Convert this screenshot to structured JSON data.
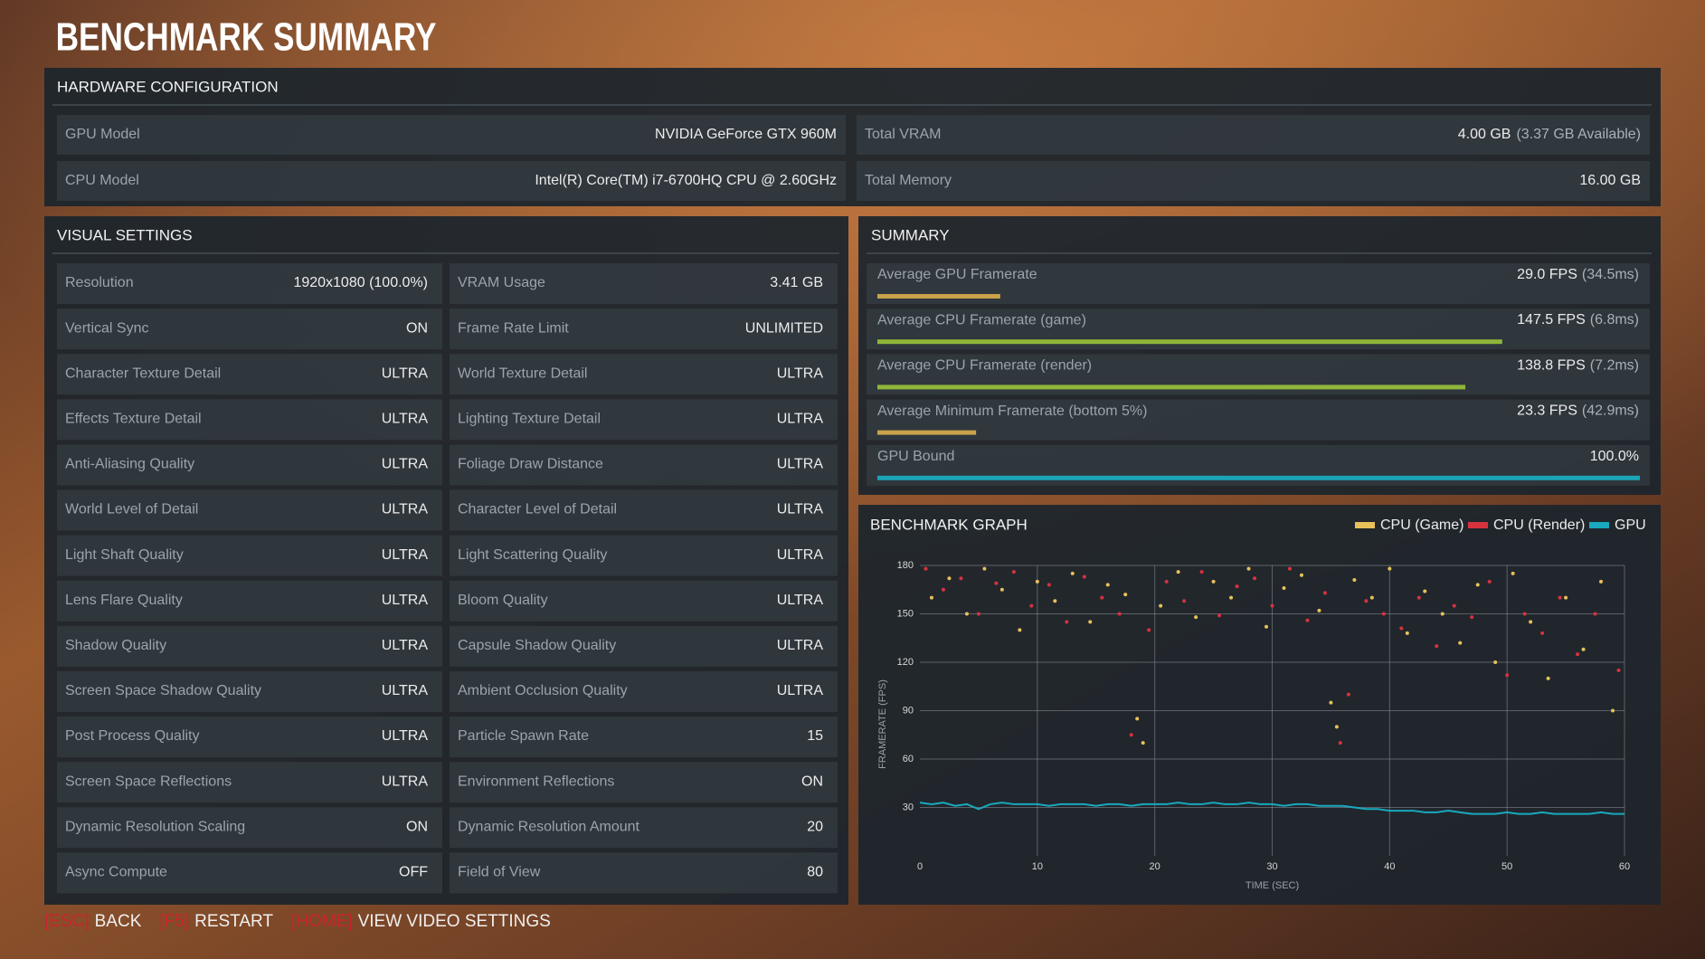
{
  "title": "BENCHMARK SUMMARY",
  "hardware": {
    "title": "HARDWARE CONFIGURATION",
    "rows": [
      {
        "label": "GPU Model",
        "value": "NVIDIA GeForce GTX 960M"
      },
      {
        "label": "Total VRAM",
        "value": "4.00 GB",
        "detail": "(3.37 GB Available)"
      },
      {
        "label": "CPU Model",
        "value": "Intel(R) Core(TM) i7-6700HQ CPU @ 2.60GHz"
      },
      {
        "label": "Total Memory",
        "value": "16.00 GB"
      }
    ]
  },
  "visual_settings": {
    "title": "VISUAL SETTINGS",
    "rows": [
      {
        "label": "Resolution",
        "value": "1920x1080 (100.0%)"
      },
      {
        "label": "VRAM Usage",
        "value": "3.41 GB"
      },
      {
        "label": "Vertical Sync",
        "value": "ON"
      },
      {
        "label": "Frame Rate Limit",
        "value": "UNLIMITED"
      },
      {
        "label": "Character Texture Detail",
        "value": "ULTRA"
      },
      {
        "label": "World Texture Detail",
        "value": "ULTRA"
      },
      {
        "label": "Effects Texture Detail",
        "value": "ULTRA"
      },
      {
        "label": "Lighting Texture Detail",
        "value": "ULTRA"
      },
      {
        "label": "Anti-Aliasing Quality",
        "value": "ULTRA"
      },
      {
        "label": "Foliage Draw Distance",
        "value": "ULTRA"
      },
      {
        "label": "World Level of Detail",
        "value": "ULTRA"
      },
      {
        "label": "Character Level of Detail",
        "value": "ULTRA"
      },
      {
        "label": "Light Shaft Quality",
        "value": "ULTRA"
      },
      {
        "label": "Light Scattering Quality",
        "value": "ULTRA"
      },
      {
        "label": "Lens Flare Quality",
        "value": "ULTRA"
      },
      {
        "label": "Bloom Quality",
        "value": "ULTRA"
      },
      {
        "label": "Shadow Quality",
        "value": "ULTRA"
      },
      {
        "label": "Capsule Shadow Quality",
        "value": "ULTRA"
      },
      {
        "label": "Screen Space Shadow Quality",
        "value": "ULTRA"
      },
      {
        "label": "Ambient Occlusion Quality",
        "value": "ULTRA"
      },
      {
        "label": "Post Process Quality",
        "value": "ULTRA"
      },
      {
        "label": "Particle Spawn Rate",
        "value": 15
      },
      {
        "label": "Screen Space Reflections",
        "value": "ULTRA"
      },
      {
        "label": "Environment Reflections",
        "value": "ON"
      },
      {
        "label": "Dynamic Resolution Scaling",
        "value": "ON"
      },
      {
        "label": "Dynamic Resolution Amount",
        "value": 20
      },
      {
        "label": "Async Compute",
        "value": "OFF"
      },
      {
        "label": "Field of View",
        "value": 80
      }
    ]
  },
  "summary": {
    "title": "SUMMARY",
    "rows": [
      {
        "label": "Average GPU Framerate",
        "value": 29.0,
        "value_label": "29.0 FPS",
        "detail": "(34.5ms)",
        "color": "#c9a24a"
      },
      {
        "label": "Average CPU Framerate (game)",
        "value": 147.5,
        "value_label": "147.5 FPS",
        "detail": "(6.8ms)",
        "color": "#8fb53b"
      },
      {
        "label": "Average CPU Framerate (render)",
        "value": 138.8,
        "value_label": "138.8 FPS",
        "detail": "(7.2ms)",
        "color": "#8fb53b"
      },
      {
        "label": "Average Minimum Framerate (bottom 5%)",
        "value": 23.3,
        "value_label": "23.3 FPS",
        "detail": "(42.9ms)",
        "color": "#c9a24a"
      },
      {
        "label": "GPU Bound",
        "value": 100.0,
        "value_label": "100.0%",
        "color": "#1aa5b8"
      }
    ]
  },
  "chart_data": {
    "type": "scatter",
    "title": "BENCHMARK GRAPH",
    "x_label": "TIME (SEC)",
    "y_label": "FRAMERATE (FPS)",
    "xlim": [
      0,
      60
    ],
    "xticks": [
      0,
      10,
      20,
      30,
      40,
      50,
      60
    ],
    "ylim": [
      0,
      180
    ],
    "yticks": [
      30,
      60,
      90,
      120,
      150,
      180
    ],
    "grid": true,
    "series": [
      {
        "name": "CPU (Game)",
        "color": "#e8c15a",
        "style": "points",
        "x": [
          1,
          2.5,
          4,
          5.5,
          7,
          8.5,
          10,
          11.5,
          13,
          14.5,
          16,
          17.5,
          18.5,
          19,
          20.5,
          22,
          23.5,
          25,
          26.5,
          28,
          29.5,
          31,
          32.5,
          34,
          35,
          35.5,
          37,
          38.5,
          40,
          41.5,
          43,
          44.5,
          46,
          47.5,
          49,
          50.5,
          52,
          53.5,
          55,
          56.5,
          58,
          59
        ],
        "values": [
          160,
          172,
          150,
          178,
          165,
          140,
          170,
          158,
          175,
          145,
          168,
          162,
          85,
          70,
          155,
          176,
          148,
          170,
          160,
          178,
          142,
          166,
          174,
          152,
          95,
          80,
          171,
          160,
          178,
          138,
          164,
          150,
          132,
          168,
          120,
          175,
          145,
          110,
          160,
          128,
          170,
          90
        ]
      },
      {
        "name": "CPU (Render)",
        "color": "#d8323f",
        "style": "points",
        "x": [
          0.5,
          2,
          3.5,
          5,
          6.5,
          8,
          9.5,
          11,
          12.5,
          14,
          15.5,
          17,
          18,
          19.5,
          21,
          22.5,
          24,
          25.5,
          27,
          28.5,
          30,
          31.5,
          33,
          34.5,
          35.8,
          36.5,
          38,
          39.5,
          41,
          42.5,
          44,
          45.5,
          47,
          48.5,
          50,
          51.5,
          53,
          54.5,
          56,
          57.5,
          59.5
        ],
        "values": [
          178,
          165,
          172,
          150,
          169,
          176,
          155,
          168,
          145,
          173,
          160,
          150,
          75,
          140,
          170,
          158,
          176,
          149,
          167,
          172,
          155,
          178,
          146,
          163,
          70,
          100,
          158,
          150,
          141,
          160,
          130,
          155,
          148,
          170,
          112,
          150,
          138,
          160,
          125,
          150,
          115
        ]
      },
      {
        "name": "GPU",
        "color": "#18a9bd",
        "style": "line",
        "x": [
          0,
          1,
          2,
          3,
          4,
          5,
          6,
          7,
          8,
          9,
          10,
          11,
          12,
          13,
          14,
          15,
          16,
          17,
          18,
          19,
          20,
          21,
          22,
          23,
          24,
          25,
          26,
          27,
          28,
          29,
          30,
          31,
          32,
          33,
          34,
          35,
          36,
          37,
          38,
          39,
          40,
          41,
          42,
          43,
          44,
          45,
          46,
          47,
          48,
          49,
          50,
          51,
          52,
          53,
          54,
          55,
          56,
          57,
          58,
          59,
          60
        ],
        "values": [
          33,
          32,
          33,
          31,
          32,
          29,
          32,
          33,
          32,
          32,
          32,
          31,
          32,
          32,
          32,
          31,
          32,
          32,
          31,
          32,
          32,
          32,
          33,
          32,
          32,
          33,
          32,
          32,
          33,
          32,
          32,
          31,
          32,
          32,
          31,
          31,
          31,
          30,
          29,
          29,
          28,
          28,
          28,
          27,
          27,
          28,
          27,
          26,
          26,
          26,
          27,
          26,
          26,
          27,
          26,
          26,
          26,
          26,
          27,
          26,
          26
        ]
      }
    ]
  },
  "footer": [
    {
      "key": "[ESC]",
      "label": "BACK"
    },
    {
      "key": "[F5]",
      "label": "RESTART"
    },
    {
      "key": "[HOME]",
      "label": "VIEW VIDEO SETTINGS"
    }
  ]
}
